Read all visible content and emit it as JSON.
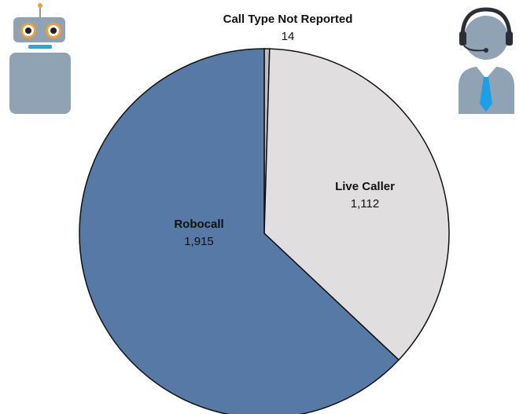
{
  "chart_data": {
    "type": "pie",
    "categories": [
      "Call Type Not Reported",
      "Live Caller",
      "Robocall"
    ],
    "values": [
      14,
      1112,
      1915
    ],
    "value_labels": [
      "14",
      "1,112",
      "1,915"
    ],
    "colors": [
      "#bfbfbf",
      "#e0dede",
      "#5679a6"
    ]
  }
}
